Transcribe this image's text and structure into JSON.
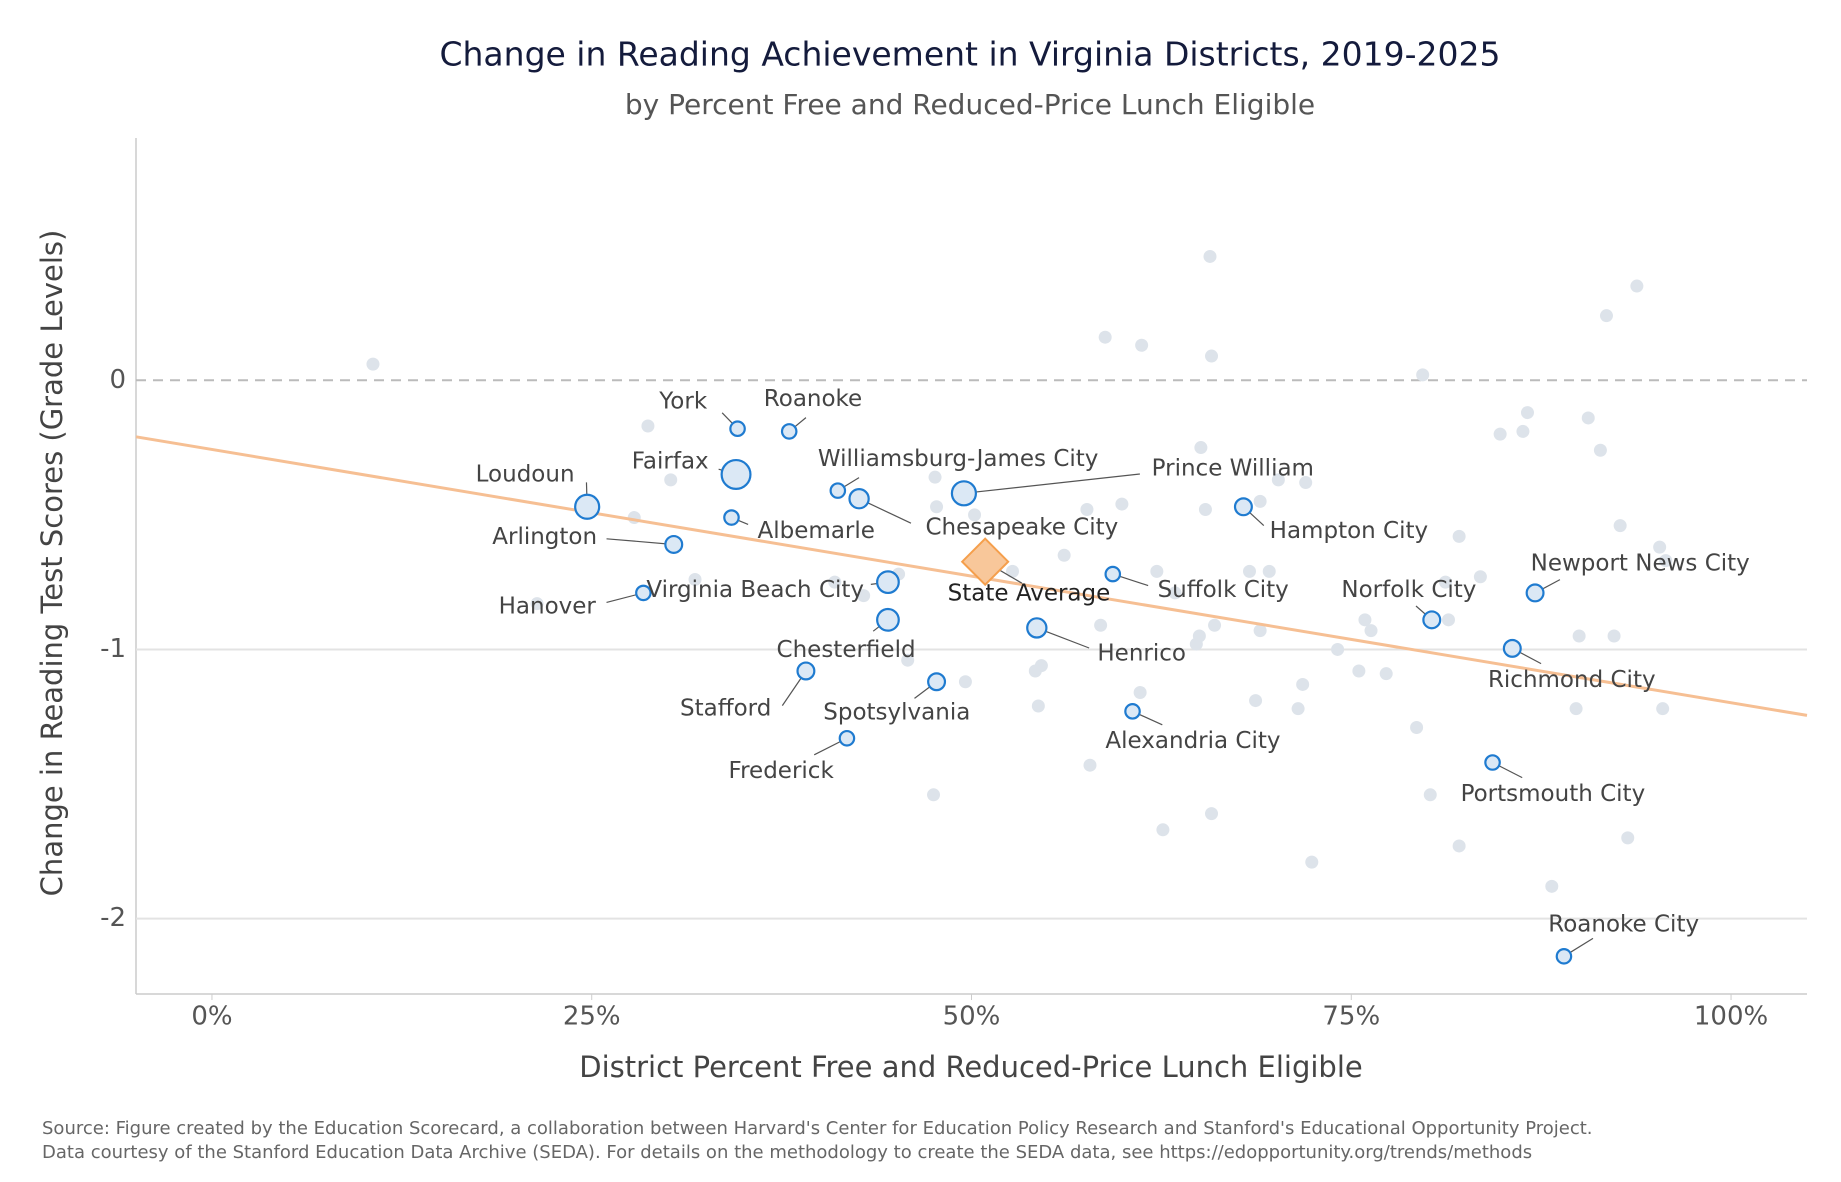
{
  "chart_data": {
    "type": "scatter",
    "title": "Change in Reading Achievement in Virginia Districts, 2019-2025",
    "subtitle": "by Percent Free and Reduced-Price Lunch Eligible",
    "x_label": "District Percent Free and Reduced-Price Lunch Eligible",
    "y_label": "Change in Reading Test Scores (Grade Levels)",
    "source": [
      "Source: Figure created by the Education Scorecard, a collaboration between Harvard's Center for Education Policy Research and Stanford's Educational Opportunity Project.",
      "Data courtesy of the Stanford Education Data Archive (SEDA). For details on the methodology to create the SEDA data, see https://edopportunity.org/trends/methods"
    ],
    "xlim": [
      -5,
      105
    ],
    "ylim": [
      -2.28,
      0.9
    ],
    "xticks": [
      {
        "value": 0,
        "label": "0%"
      },
      {
        "value": 25,
        "label": "25%"
      },
      {
        "value": 50,
        "label": "50%"
      },
      {
        "value": 75,
        "label": "75%"
      },
      {
        "value": 100,
        "label": "100%"
      }
    ],
    "yticks": [
      0,
      -1,
      -2
    ],
    "grid": true,
    "highlight_color": "#1f7bd0",
    "other_color": "#dde3ea",
    "trend_color": "#f6bf93",
    "state_color": "#f59f4c",
    "trend_line": {
      "x": [
        -5,
        105
      ],
      "y": [
        -0.21,
        -1.245
      ]
    },
    "state_average": {
      "name": "State Average",
      "x": 50.9,
      "y": -0.674
    },
    "districts": [
      {
        "name": "York",
        "x": 34.6,
        "y": -0.18,
        "size": 6
      },
      {
        "name": "Roanoke",
        "x": 38.0,
        "y": -0.19,
        "size": 6
      },
      {
        "name": "Fairfax",
        "x": 34.5,
        "y": -0.35,
        "size": 12
      },
      {
        "name": "Loudoun",
        "x": 24.7,
        "y": -0.47,
        "size": 10
      },
      {
        "name": "Williamsburg-James City",
        "x": 41.2,
        "y": -0.41,
        "size": 6
      },
      {
        "name": "Chesapeake City",
        "x": 42.6,
        "y": -0.44,
        "size": 8
      },
      {
        "name": "Prince William",
        "x": 49.5,
        "y": -0.42,
        "size": 10
      },
      {
        "name": "Hampton City",
        "x": 67.9,
        "y": -0.47,
        "size": 7
      },
      {
        "name": "Albemarle",
        "x": 34.2,
        "y": -0.51,
        "size": 6
      },
      {
        "name": "Arlington",
        "x": 30.4,
        "y": -0.61,
        "size": 7
      },
      {
        "name": "Hanover",
        "x": 28.4,
        "y": -0.79,
        "size": 6
      },
      {
        "name": "Virginia Beach City",
        "x": 44.5,
        "y": -0.75,
        "size": 9
      },
      {
        "name": "Chesterfield",
        "x": 44.5,
        "y": -0.89,
        "size": 9
      },
      {
        "name": "Suffolk City",
        "x": 59.3,
        "y": -0.72,
        "size": 6
      },
      {
        "name": "Henrico",
        "x": 54.3,
        "y": -0.92,
        "size": 8
      },
      {
        "name": "Norfolk City",
        "x": 80.3,
        "y": -0.89,
        "size": 7
      },
      {
        "name": "Newport News City",
        "x": 87.1,
        "y": -0.79,
        "size": 7
      },
      {
        "name": "Richmond City",
        "x": 85.6,
        "y": -0.996,
        "size": 7
      },
      {
        "name": "Stafford",
        "x": 39.1,
        "y": -1.08,
        "size": 7
      },
      {
        "name": "Spotsylvania",
        "x": 47.7,
        "y": -1.12,
        "size": 7
      },
      {
        "name": "Alexandria City",
        "x": 60.6,
        "y": -1.23,
        "size": 6
      },
      {
        "name": "Frederick",
        "x": 41.8,
        "y": -1.33,
        "size": 6
      },
      {
        "name": "Portsmouth City",
        "x": 84.3,
        "y": -1.42,
        "size": 6
      },
      {
        "name": "Roanoke City",
        "x": 89.0,
        "y": -2.14,
        "size": 6
      }
    ],
    "other_districts": {
      "x": [
        10.6,
        28.7,
        30.2,
        27.8,
        21.4,
        31.8,
        58.8,
        61.2,
        65.7,
        65.8,
        79.7,
        91.8,
        93.8,
        65.1,
        86.6,
        90.6,
        84.8,
        86.3,
        91.4,
        70.2,
        72.0,
        69.0,
        59.9,
        57.6,
        65.4,
        82.1,
        92.7,
        95.3,
        95.7,
        83.5,
        81.2,
        68.3,
        69.6,
        62.2,
        56.1,
        63.4,
        75.9,
        76.3,
        81.4,
        58.5,
        66.0,
        69.0,
        65.0,
        90.0,
        92.3,
        74.1,
        64.8,
        45.8,
        54.6,
        54.2,
        49.6,
        61.1,
        71.8,
        75.5,
        77.3,
        68.7,
        71.5,
        89.8,
        95.5,
        79.3,
        54.4,
        57.8,
        47.5,
        80.2,
        65.8,
        62.6,
        82.1,
        93.2,
        72.4,
        88.2,
        41.0,
        42.9,
        45.2,
        47.6,
        50.2,
        47.7,
        52.7
      ],
      "y": [
        0.06,
        -0.17,
        -0.37,
        -0.51,
        -0.83,
        -0.74,
        0.16,
        0.13,
        0.46,
        0.09,
        0.02,
        0.24,
        0.35,
        -0.25,
        -0.12,
        -0.14,
        -0.2,
        -0.19,
        -0.26,
        -0.37,
        -0.38,
        -0.45,
        -0.46,
        -0.48,
        -0.48,
        -0.58,
        -0.54,
        -0.62,
        -0.67,
        -0.73,
        -0.75,
        -0.71,
        -0.71,
        -0.71,
        -0.65,
        -0.79,
        -0.89,
        -0.93,
        -0.89,
        -0.91,
        -0.91,
        -0.93,
        -0.95,
        -0.95,
        -0.95,
        -1.0,
        -0.98,
        -1.04,
        -1.06,
        -1.08,
        -1.12,
        -1.16,
        -1.13,
        -1.08,
        -1.09,
        -1.19,
        -1.22,
        -1.22,
        -1.22,
        -1.29,
        -1.21,
        -1.43,
        -1.54,
        -1.54,
        -1.61,
        -1.67,
        -1.73,
        -1.7,
        -1.79,
        -1.88,
        -0.75,
        -0.8,
        -0.72,
        -0.36,
        -0.5,
        -0.47,
        -0.71
      ]
    }
  }
}
